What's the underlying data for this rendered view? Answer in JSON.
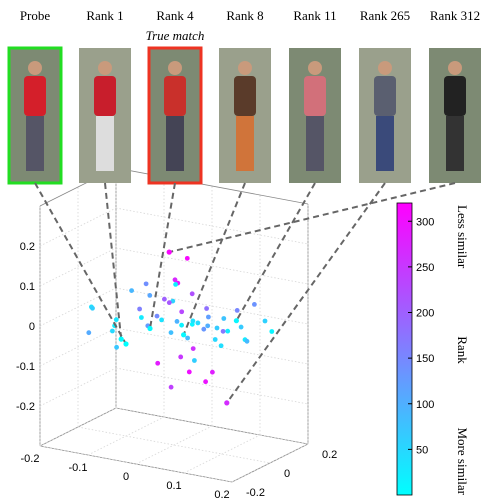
{
  "chart_data": {
    "type": "scatter3d",
    "images": [
      {
        "label": "Probe",
        "x": -0.1,
        "y": 0,
        "z": -0.07
      },
      {
        "label": "Rank 1",
        "rank": 1,
        "x": -0.11,
        "y": 0,
        "z": -0.06
      },
      {
        "label": "Rank 4",
        "rank": 4,
        "x": -0.05,
        "y": 0,
        "z": -0.02,
        "annotation": "True match"
      },
      {
        "label": "Rank 8",
        "rank": 8,
        "x": 0.02,
        "y": 0,
        "z": -0.02
      },
      {
        "label": "Rank 11",
        "rank": 11,
        "x": 0.13,
        "y": 0,
        "z": 0.04
      },
      {
        "label": "Rank 265",
        "rank": 265,
        "x": 0.11,
        "y": 0,
        "z": -0.17
      },
      {
        "label": "Rank 312",
        "rank": 312,
        "x": -0.01,
        "y": 0,
        "z": 0.18
      }
    ],
    "points": [
      [
        -0.18,
        0.02,
        0.0,
        40
      ],
      [
        -0.15,
        -0.05,
        0.02,
        60
      ],
      [
        -0.14,
        0.05,
        -0.03,
        30
      ],
      [
        -0.12,
        0.08,
        0.04,
        90
      ],
      [
        -0.1,
        -0.06,
        -0.01,
        20
      ],
      [
        -0.09,
        0.1,
        0.03,
        110
      ],
      [
        -0.08,
        -0.1,
        -0.05,
        70
      ],
      [
        -0.07,
        0.03,
        0.08,
        140
      ],
      [
        -0.06,
        -0.02,
        0.01,
        25
      ],
      [
        -0.05,
        0.12,
        0.02,
        55
      ],
      [
        -0.04,
        -0.08,
        0.05,
        160
      ],
      [
        -0.03,
        0.06,
        -0.04,
        80
      ],
      [
        -0.02,
        0.0,
        0.06,
        200
      ],
      [
        -0.01,
        -0.04,
        0.02,
        35
      ],
      [
        0.0,
        0.04,
        -0.01,
        15
      ],
      [
        0.0,
        0.02,
        0.1,
        290
      ],
      [
        0.01,
        -0.02,
        0.12,
        270
      ],
      [
        0.01,
        0.01,
        -0.08,
        250
      ],
      [
        0.02,
        0.03,
        -0.12,
        300
      ],
      [
        0.02,
        -0.01,
        0.04,
        230
      ],
      [
        0.03,
        0.05,
        0.0,
        45
      ],
      [
        0.03,
        -0.06,
        0.03,
        95
      ],
      [
        0.04,
        0.0,
        -0.05,
        260
      ],
      [
        0.04,
        0.08,
        0.01,
        120
      ],
      [
        0.05,
        -0.03,
        0.02,
        10
      ],
      [
        0.05,
        0.1,
        -0.02,
        65
      ],
      [
        0.06,
        0.02,
        0.05,
        180
      ],
      [
        0.06,
        -0.08,
        0.0,
        85
      ],
      [
        0.07,
        0.04,
        -0.03,
        50
      ],
      [
        0.07,
        -0.02,
        0.01,
        130
      ],
      [
        0.08,
        0.06,
        0.02,
        75
      ],
      [
        0.08,
        0.0,
        -0.1,
        280
      ],
      [
        0.09,
        -0.05,
        0.03,
        100
      ],
      [
        0.1,
        0.03,
        0.0,
        22
      ],
      [
        0.1,
        0.08,
        0.04,
        150
      ],
      [
        0.11,
        -0.03,
        -0.02,
        42
      ],
      [
        0.12,
        0.05,
        0.01,
        66
      ],
      [
        0.13,
        -0.07,
        0.03,
        170
      ],
      [
        0.14,
        0.02,
        -0.01,
        28
      ],
      [
        0.15,
        0.1,
        0.02,
        58
      ],
      [
        0.16,
        -0.02,
        0.0,
        88
      ],
      [
        0.18,
        0.06,
        0.01,
        12
      ],
      [
        -0.13,
        -0.12,
        -0.02,
        105
      ],
      [
        -0.11,
        0.14,
        -0.06,
        125
      ],
      [
        -0.02,
        0.15,
        -0.03,
        38
      ],
      [
        0.02,
        -0.14,
        0.06,
        145
      ],
      [
        0.0,
        0.07,
        0.15,
        310
      ],
      [
        -0.01,
        0.01,
        -0.16,
        240
      ],
      [
        0.03,
        0.02,
        0.08,
        220
      ],
      [
        -0.03,
        -0.01,
        -0.1,
        285
      ],
      [
        0.05,
        0.04,
        -0.14,
        295
      ],
      [
        0.01,
        -0.05,
        0.07,
        210
      ],
      [
        -0.16,
        0.08,
        -0.07,
        48
      ],
      [
        0.12,
        0.12,
        0.05,
        135
      ],
      [
        -0.06,
        0.16,
        0.05,
        18
      ],
      [
        0.09,
        -0.12,
        -0.04,
        62
      ]
    ],
    "xlim": [
      -0.2,
      0.2
    ],
    "ylim": [
      -0.2,
      0.2
    ],
    "zlim": [
      -0.3,
      0.3
    ],
    "xticks": [
      -0.2,
      -0.1,
      0,
      0.1,
      0.2
    ],
    "yticks": [
      -0.2,
      0,
      0.2
    ],
    "zticks": [
      -0.2,
      -0.1,
      0,
      0.1,
      0.2
    ],
    "clim": [
      0,
      320
    ],
    "cticks": [
      50,
      100,
      150,
      200,
      250,
      300
    ],
    "colormap": [
      "#00ffff",
      "#ff00ff"
    ],
    "colorbar_labels": {
      "top": "Less similar",
      "middle": "Rank",
      "bottom": "More similar"
    },
    "grid": true
  }
}
